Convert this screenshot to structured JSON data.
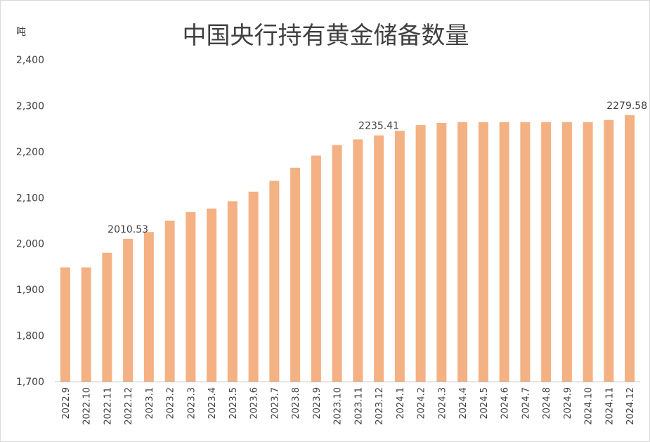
{
  "chart_data": {
    "type": "bar",
    "title": "中国央行持有黄金储备数量",
    "ylabel": "吨",
    "xlabel": "",
    "ylim": [
      1700,
      2400
    ],
    "yticks": [
      "1,700",
      "1,800",
      "1,900",
      "2,000",
      "2,100",
      "2,200",
      "2,300",
      "2,400"
    ],
    "grid": false,
    "legend": "none",
    "categories": [
      "2022.9",
      "2022.10",
      "2022.11",
      "2022.12",
      "2023.1",
      "2023.2",
      "2023.3",
      "2023.4",
      "2023.5",
      "2023.6",
      "2023.7",
      "2023.8",
      "2023.9",
      "2023.10",
      "2023.11",
      "2023.12",
      "2024.1",
      "2024.2",
      "2024.3",
      "2024.4",
      "2024.5",
      "2024.6",
      "2024.7",
      "2024.8",
      "2024.9",
      "2024.10",
      "2024.11",
      "2024.12"
    ],
    "values": [
      1948.31,
      1948.31,
      1980.04,
      2010.53,
      2025.18,
      2050.06,
      2068.57,
      2076.35,
      2092.21,
      2113.05,
      2136.69,
      2165.0,
      2191.44,
      2214.57,
      2226.7,
      2235.41,
      2245.36,
      2257.8,
      2262.45,
      2264.32,
      2264.32,
      2264.32,
      2264.32,
      2264.32,
      2264.32,
      2264.32,
      2268.98,
      2279.58
    ],
    "data_labels": [
      {
        "category": "2022.12",
        "text": "2010.53"
      },
      {
        "category": "2023.12",
        "text": "2235.41"
      },
      {
        "category": "2024.12",
        "text": "2279.58"
      }
    ],
    "colors": {
      "bar": "#F4B183",
      "axis": "#bfbfbf",
      "text": "#404040"
    }
  }
}
